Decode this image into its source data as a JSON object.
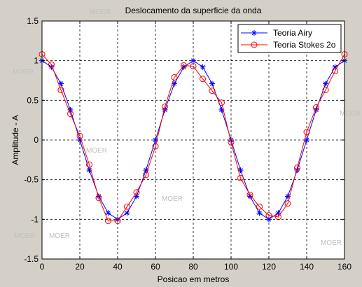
{
  "chart_data": {
    "type": "line",
    "title": "Deslocamento da superficie da onda",
    "xlabel": "Posicao em metros",
    "ylabel": "Amplitude - A",
    "xlim": [
      0,
      160
    ],
    "ylim": [
      -1.5,
      1.5
    ],
    "xticks": [
      0,
      20,
      40,
      60,
      80,
      100,
      120,
      140,
      160
    ],
    "yticks": [
      -1.5,
      -1,
      -0.5,
      0,
      0.5,
      1,
      1.5
    ],
    "xtick_labels": [
      "0",
      "20",
      "40",
      "60",
      "80",
      "100",
      "120",
      "140",
      "160"
    ],
    "ytick_labels": [
      "-1.5",
      "-1",
      "-0.5",
      "0",
      "0.5",
      "1",
      "1.5"
    ],
    "grid": true,
    "legend_position": "top-right",
    "x": [
      0,
      5,
      10,
      15,
      20,
      25,
      30,
      35,
      40,
      45,
      50,
      55,
      60,
      65,
      70,
      75,
      80,
      85,
      90,
      95,
      100,
      105,
      110,
      115,
      120,
      125,
      130,
      135,
      140,
      145,
      150,
      155,
      160
    ],
    "series": [
      {
        "name": "Teoria Airy",
        "color": "#0000ff",
        "marker": "star",
        "values": [
          1.0,
          0.92,
          0.71,
          0.38,
          0.0,
          -0.38,
          -0.71,
          -0.92,
          -1.0,
          -0.92,
          -0.71,
          -0.38,
          0.0,
          0.38,
          0.71,
          0.92,
          1.0,
          0.92,
          0.71,
          0.38,
          0.0,
          -0.38,
          -0.71,
          -0.92,
          -1.0,
          -0.92,
          -0.71,
          -0.38,
          0.0,
          0.38,
          0.71,
          0.92,
          1.0
        ]
      },
      {
        "name": "Teoria Stokes 2o",
        "color": "#ff0000",
        "marker": "circle",
        "values": [
          1.08,
          0.95,
          0.63,
          0.33,
          0.05,
          -0.31,
          -0.73,
          -1.02,
          -1.02,
          -0.84,
          -0.66,
          -0.44,
          -0.08,
          0.42,
          0.79,
          0.94,
          0.93,
          0.77,
          0.62,
          0.47,
          -0.03,
          -0.48,
          -0.69,
          -0.84,
          -0.95,
          -0.97,
          -0.8,
          -0.35,
          0.1,
          0.41,
          0.63,
          0.87,
          1.08
        ]
      }
    ],
    "watermarks": [
      "MOER",
      "MOER",
      "MOER",
      "MOER",
      "MOER",
      "MOER",
      "MOER",
      "MOER",
      "MOER"
    ]
  }
}
